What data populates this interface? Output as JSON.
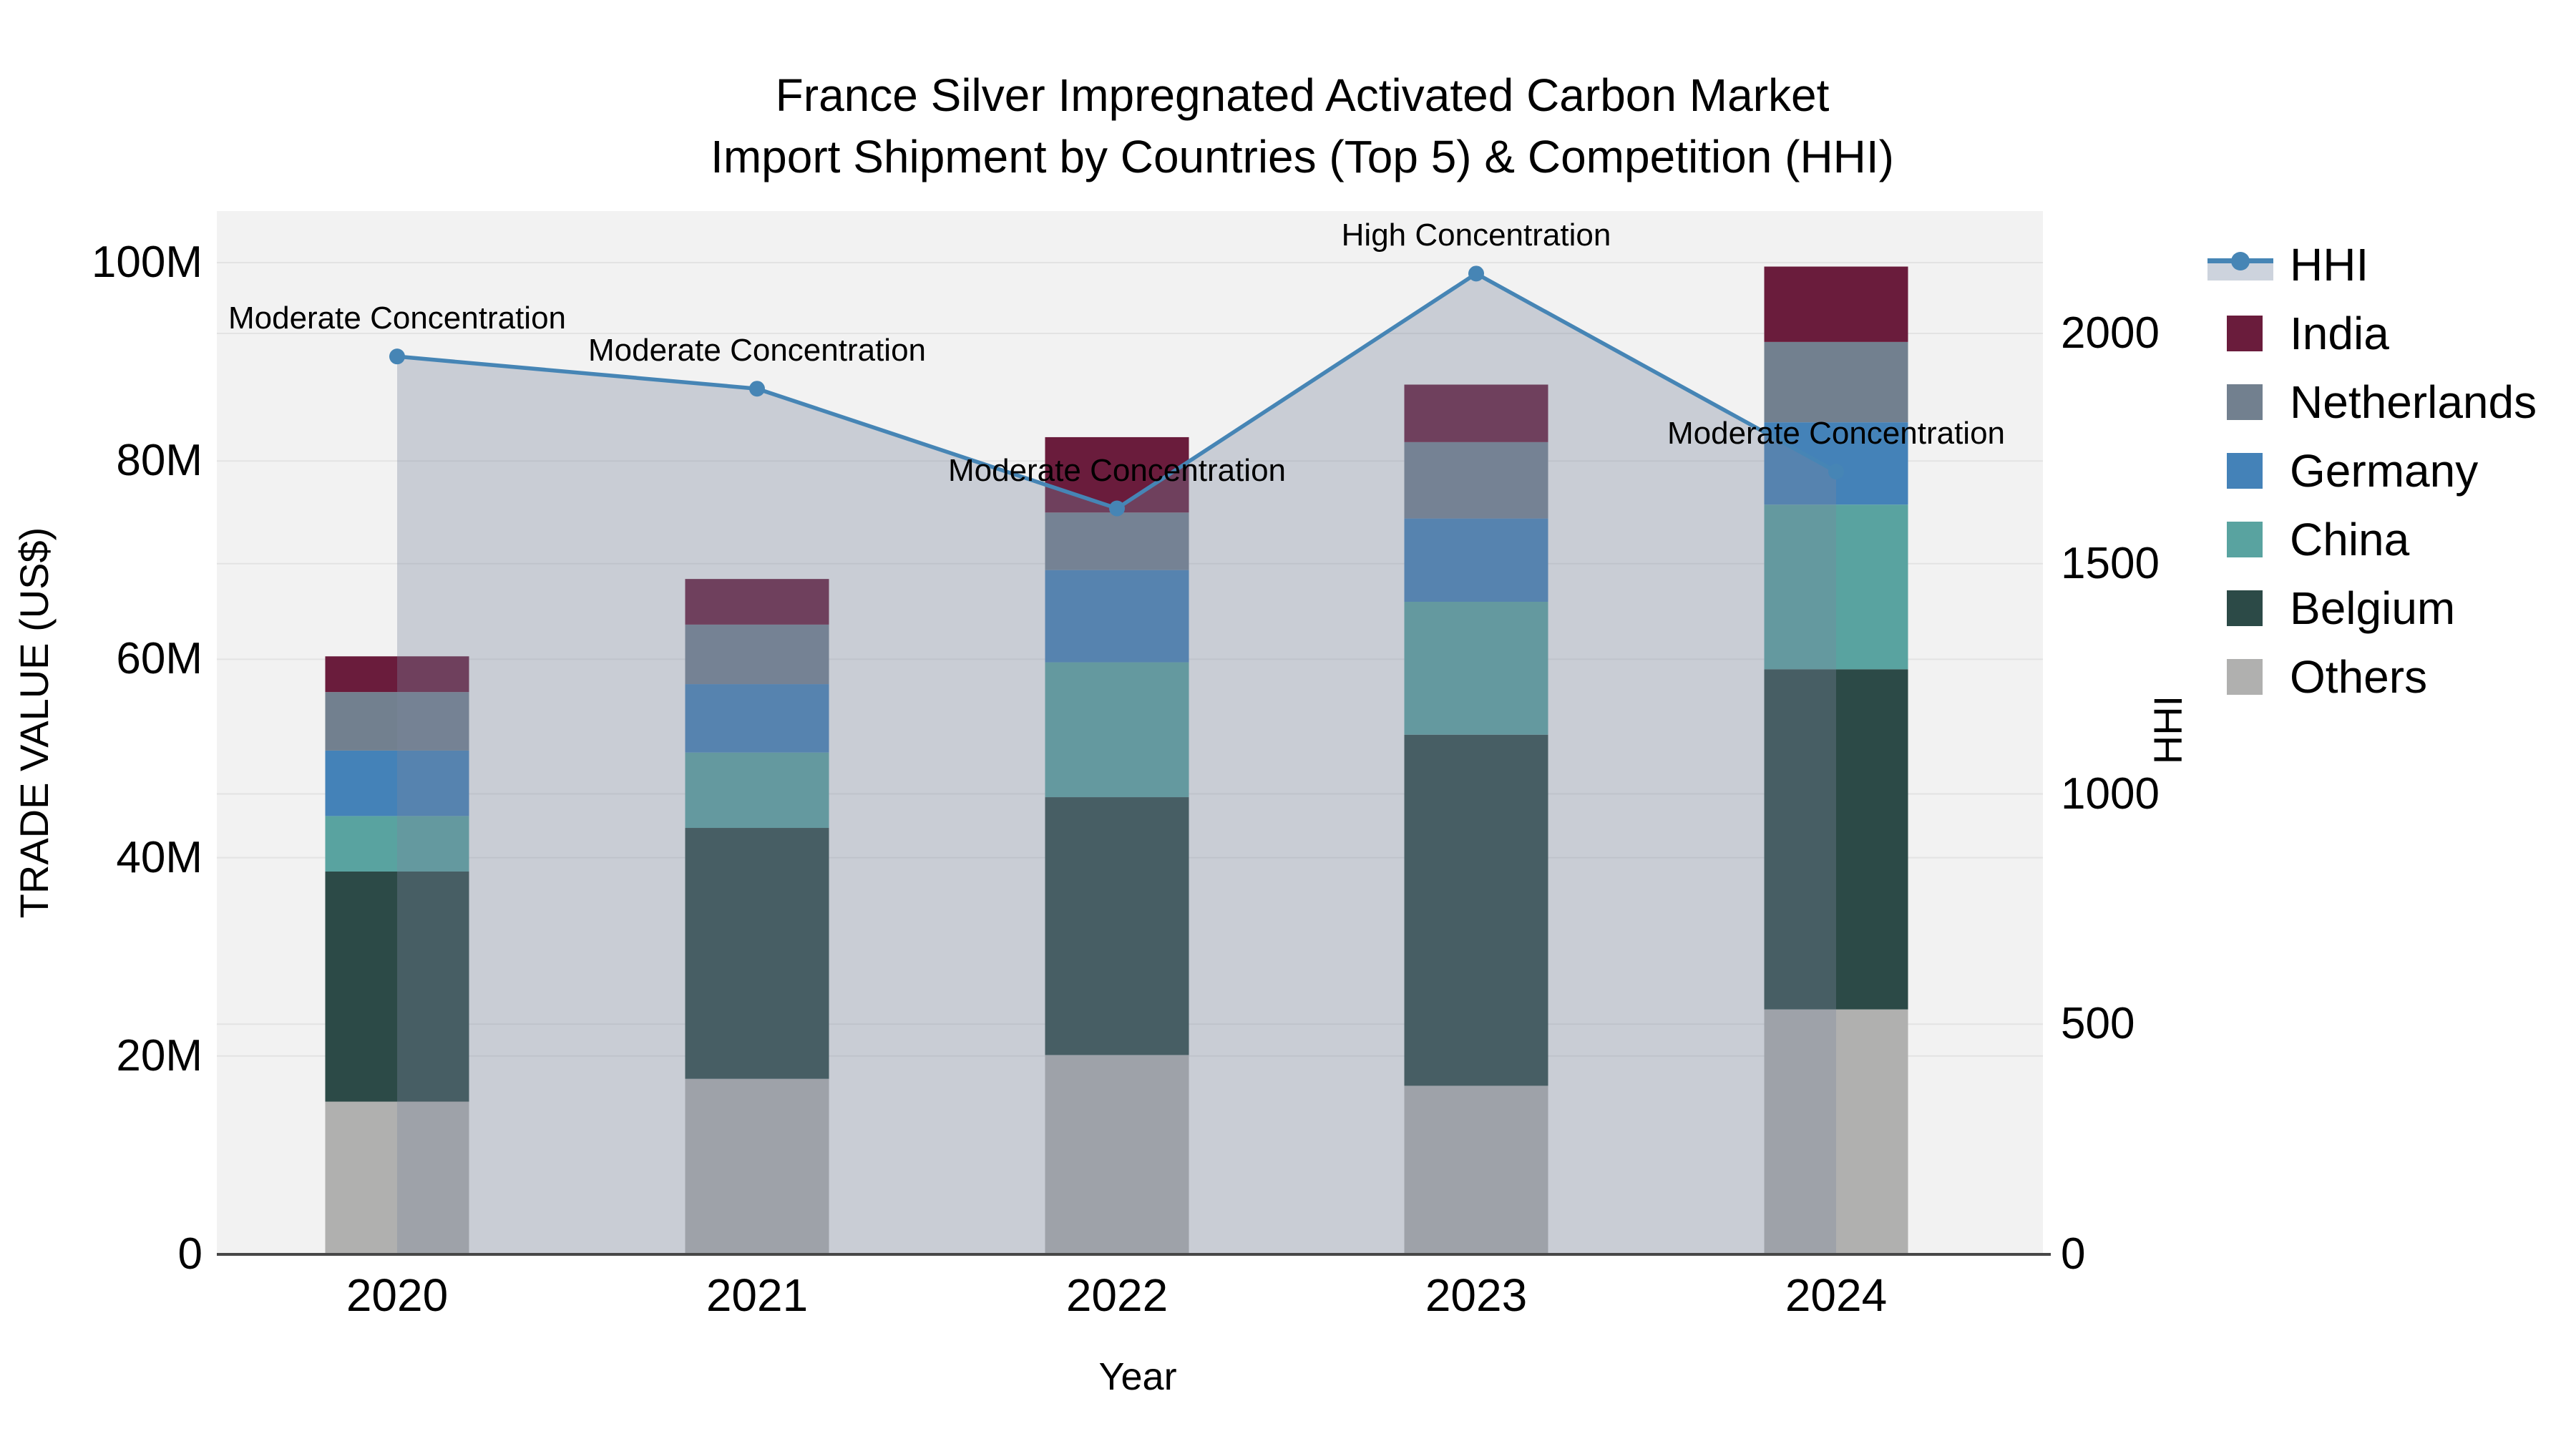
{
  "title": {
    "line1": "France Silver Impregnated Activated Carbon Market",
    "line2": "Import Shipment by Countries (Top 5) & Competition (HHI)"
  },
  "axes": {
    "left": {
      "title": "TRADE VALUE (US$)",
      "ticks": [
        {
          "label": "0",
          "value": 0
        },
        {
          "label": "20M",
          "value": 20
        },
        {
          "label": "40M",
          "value": 40
        },
        {
          "label": "60M",
          "value": 60
        },
        {
          "label": "80M",
          "value": 80
        },
        {
          "label": "100M",
          "value": 100
        }
      ]
    },
    "right": {
      "title": "HHI",
      "ticks": [
        {
          "label": "0",
          "value": 0
        },
        {
          "label": "500",
          "value": 500
        },
        {
          "label": "1000",
          "value": 1000
        },
        {
          "label": "1500",
          "value": 1500
        },
        {
          "label": "2000",
          "value": 2000
        }
      ]
    },
    "x": {
      "title": "Year",
      "categories": [
        "2020",
        "2021",
        "2022",
        "2023",
        "2024"
      ]
    }
  },
  "legend": {
    "items": [
      {
        "label": "HHI",
        "glyph": "line-marker",
        "color": "#4685b5"
      },
      {
        "label": "India",
        "glyph": "square",
        "color": "#6a1c3c"
      },
      {
        "label": "Netherlands",
        "glyph": "square",
        "color": "#72808f"
      },
      {
        "label": "Germany",
        "glyph": "square",
        "color": "#4482b8"
      },
      {
        "label": "China",
        "glyph": "square",
        "color": "#59a3a0"
      },
      {
        "label": "Belgium",
        "glyph": "square",
        "color": "#2c4a47"
      },
      {
        "label": "Others",
        "glyph": "square",
        "color": "#b0b0af"
      }
    ]
  },
  "annotations": [
    {
      "category": "2020",
      "text": "Moderate Concentration"
    },
    {
      "category": "2021",
      "text": "Moderate Concentration"
    },
    {
      "category": "2022",
      "text": "Moderate Concentration"
    },
    {
      "category": "2023",
      "text": "High Concentration"
    },
    {
      "category": "2024",
      "text": "Moderate Concentration"
    }
  ],
  "colors": {
    "hhi_line": "#4685b5",
    "hhi_area_fill": "rgba(122,134,157,0.34)",
    "plot_background": "#f2f2f2",
    "gridline": "#e3e3e3",
    "axis_line": "#474747",
    "india": "#6a1c3c",
    "netherlands": "#72808f",
    "germany": "#4482b8",
    "china": "#59a3a0",
    "belgium": "#2c4a47",
    "others": "#b0b0af"
  },
  "chart_data": {
    "type": "bar",
    "subtype": "stacked-bars-with-line-overlay",
    "title": "France Silver Impregnated Activated Carbon Market — Import Shipment by Countries (Top 5) & Competition (HHI)",
    "xlabel": "Year",
    "ylabel_left": "TRADE VALUE (US$)",
    "ylabel_right": "HHI",
    "categories": [
      "2020",
      "2021",
      "2022",
      "2023",
      "2024"
    ],
    "unit": "million US$",
    "series": [
      {
        "name": "Others",
        "color": "#b0b0af",
        "values": [
          15.4,
          17.7,
          20.1,
          17.0,
          24.7
        ]
      },
      {
        "name": "Belgium",
        "color": "#2c4a47",
        "values": [
          23.2,
          25.3,
          26.0,
          35.4,
          34.3
        ]
      },
      {
        "name": "China",
        "color": "#59a3a0",
        "values": [
          5.6,
          7.6,
          13.6,
          13.4,
          16.6
        ]
      },
      {
        "name": "Germany",
        "color": "#4482b8",
        "values": [
          6.6,
          6.9,
          9.3,
          8.4,
          8.3
        ]
      },
      {
        "name": "Netherlands",
        "color": "#72808f",
        "values": [
          5.9,
          6.0,
          5.8,
          7.7,
          8.1
        ]
      },
      {
        "name": "India",
        "color": "#6a1c3c",
        "values": [
          3.6,
          4.6,
          7.6,
          5.8,
          7.6
        ]
      }
    ],
    "totals": [
      60.3,
      68.1,
      82.4,
      87.7,
      99.6
    ],
    "line_series": {
      "name": "HHI",
      "axis": "right",
      "color": "#4685b5",
      "values": [
        1950,
        1880,
        1620,
        2130,
        1700
      ],
      "area_fill": "rgba(122,134,157,0.34)"
    },
    "ylim_left": [
      0,
      105
    ],
    "ylim_right": [
      0,
      2265
    ],
    "grid": true,
    "legend_position": "right"
  }
}
